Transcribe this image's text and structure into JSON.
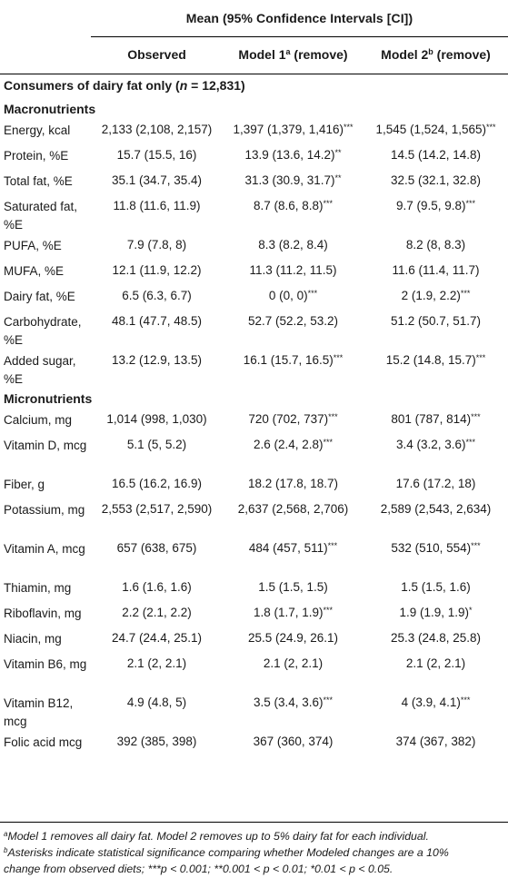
{
  "header": {
    "group_title": "Mean (95% Confidence Intervals [CI])",
    "columns": [
      {
        "label": "Observed",
        "sup": "",
        "suffix": ""
      },
      {
        "label": "Model 1",
        "sup": "a",
        "suffix": " (remove)"
      },
      {
        "label": "Model 2",
        "sup": "b",
        "suffix": " (remove)"
      }
    ]
  },
  "section_title": {
    "prefix": "Consumers of dairy fat only (",
    "n_var": "n",
    "n_value": " = 12,831)"
  },
  "groups": [
    {
      "title": "Macronutrients",
      "rows": [
        {
          "label": "Energy, kcal",
          "observed": "2,133 (2,108, 2,157)",
          "model1": "1,397 (1,379, 1,416)",
          "model1_sig": "***",
          "model2": "1,545 (1,524, 1,565)",
          "model2_sig": "***"
        },
        {
          "label": "Protein, %E",
          "observed": "15.7 (15.5, 16)",
          "model1": "13.9 (13.6, 14.2)",
          "model1_sig": "**",
          "model2": "14.5 (14.2, 14.8)",
          "model2_sig": ""
        },
        {
          "label": "Total fat, %E",
          "observed": "35.1 (34.7, 35.4)",
          "model1": "31.3 (30.9, 31.7)",
          "model1_sig": "**",
          "model2": "32.5 (32.1, 32.8)",
          "model2_sig": ""
        },
        {
          "label": "Saturated fat, %E",
          "observed": "11.8 (11.6, 11.9)",
          "model1": "8.7 (8.6, 8.8)",
          "model1_sig": "***",
          "model2": "9.7 (9.5, 9.8)",
          "model2_sig": "***"
        },
        {
          "label": "PUFA, %E",
          "observed": "7.9 (7.8, 8)",
          "model1": "8.3 (8.2, 8.4)",
          "model1_sig": "",
          "model2": "8.2 (8, 8.3)",
          "model2_sig": ""
        },
        {
          "label": "MUFA, %E",
          "observed": "12.1 (11.9, 12.2)",
          "model1": "11.3 (11.2, 11.5)",
          "model1_sig": "",
          "model2": "11.6 (11.4, 11.7)",
          "model2_sig": ""
        },
        {
          "label": "Dairy fat, %E",
          "observed": "6.5 (6.3, 6.7)",
          "model1": "0 (0, 0)",
          "model1_sig": "***",
          "model2": "2 (1.9, 2.2)",
          "model2_sig": "***"
        },
        {
          "label": "Carbohydrate, %E",
          "observed": "48.1 (47.7, 48.5)",
          "model1": "52.7 (52.2, 53.2)",
          "model1_sig": "",
          "model2": "51.2 (50.7, 51.7)",
          "model2_sig": ""
        },
        {
          "label": "Added sugar, %E",
          "observed": "13.2 (12.9, 13.5)",
          "model1": "16.1 (15.7, 16.5)",
          "model1_sig": "***",
          "model2": "15.2 (14.8, 15.7)",
          "model2_sig": "***"
        }
      ]
    },
    {
      "title": "Micronutrients",
      "rows": [
        {
          "label": "Calcium, mg",
          "observed": "1,014 (998, 1,030)",
          "model1": "720 (702, 737)",
          "model1_sig": "***",
          "model2": "801 (787, 814)",
          "model2_sig": "***"
        },
        {
          "label": "Vitamin D, mcg",
          "observed": "5.1 (5, 5.2)",
          "model1": "2.6 (2.4, 2.8)",
          "model1_sig": "***",
          "model2": "3.4 (3.2, 3.6)",
          "model2_sig": "***"
        },
        {
          "label": "Fiber, g",
          "observed": "16.5 (16.2, 16.9)",
          "model1": "18.2 (17.8, 18.7)",
          "model1_sig": "",
          "model2": "17.6 (17.2, 18)",
          "model2_sig": ""
        },
        {
          "label": "Potassium, mg",
          "observed": "2,553 (2,517, 2,590)",
          "model1": "2,637 (2,568, 2,706)",
          "model1_sig": "",
          "model2": "2,589 (2,543, 2,634)",
          "model2_sig": ""
        },
        {
          "label": "Vitamin A, mcg",
          "observed": "657 (638, 675)",
          "model1": "484 (457, 511)",
          "model1_sig": "***",
          "model2": "532 (510, 554)",
          "model2_sig": "***"
        },
        {
          "label": "Thiamin, mg",
          "observed": "1.6 (1.6, 1.6)",
          "model1": "1.5 (1.5, 1.5)",
          "model1_sig": "",
          "model2": "1.5 (1.5, 1.6)",
          "model2_sig": ""
        },
        {
          "label": "Riboflavin, mg",
          "observed": "2.2 (2.1, 2.2)",
          "model1": "1.8 (1.7, 1.9)",
          "model1_sig": "***",
          "model2": "1.9 (1.9, 1.9)",
          "model2_sig": "*"
        },
        {
          "label": "Niacin, mg",
          "observed": "24.7 (24.4, 25.1)",
          "model1": "25.5 (24.9, 26.1)",
          "model1_sig": "",
          "model2": "25.3 (24.8, 25.8)",
          "model2_sig": ""
        },
        {
          "label": "Vitamin B6, mg",
          "observed": "2.1 (2, 2.1)",
          "model1": "2.1 (2, 2.1)",
          "model1_sig": "",
          "model2": "2.1 (2, 2.1)",
          "model2_sig": ""
        },
        {
          "label": "Vitamin B12, mcg",
          "observed": "4.9 (4.8, 5)",
          "model1": "3.5 (3.4, 3.6)",
          "model1_sig": "***",
          "model2": "4 (3.9, 4.1)",
          "model2_sig": "***"
        },
        {
          "label": "Folic acid mcg",
          "observed": "392 (385, 398)",
          "model1": "367 (360, 374)",
          "model1_sig": "",
          "model2": "374 (367, 382)",
          "model2_sig": ""
        }
      ]
    }
  ],
  "footnotes": [
    {
      "mark": "a",
      "text": "Model 1 removes all dairy fat. Model 2 removes up to 5% dairy fat for each individual."
    },
    {
      "mark": "b",
      "text": "Asterisks indicate statistical significance comparing whether Modeled changes are a 10%"
    },
    {
      "mark": "",
      "text": "change from observed diets; ***p < 0.001; **0.001 < p < 0.01; *0.01 < p < 0.05."
    }
  ]
}
